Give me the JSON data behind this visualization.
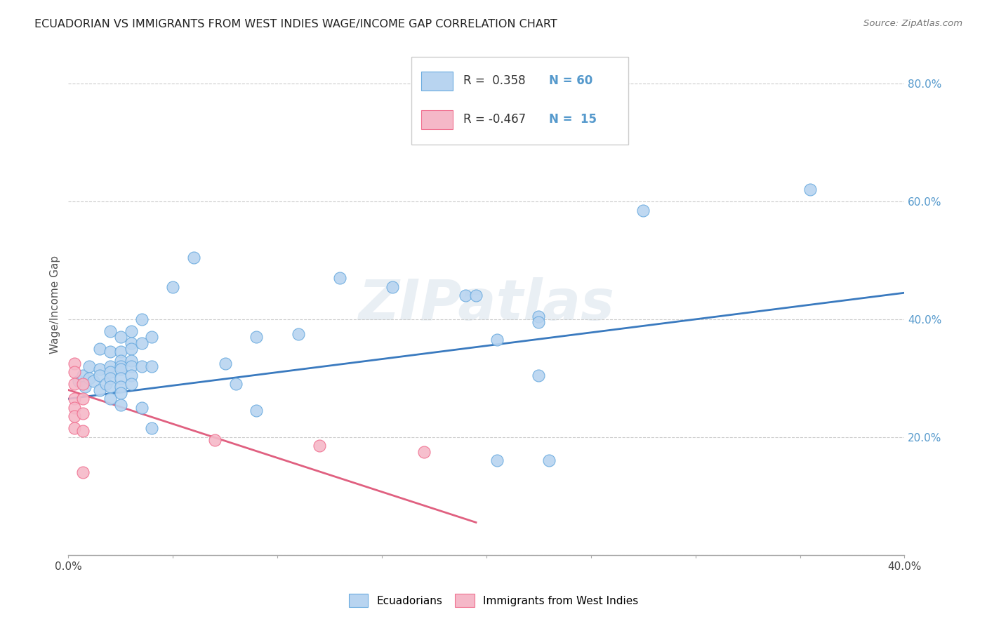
{
  "title": "ECUADORIAN VS IMMIGRANTS FROM WEST INDIES WAGE/INCOME GAP CORRELATION CHART",
  "source": "Source: ZipAtlas.com",
  "ylabel": "Wage/Income Gap",
  "xlim": [
    0.0,
    0.4
  ],
  "ylim": [
    0.0,
    0.85
  ],
  "watermark": "ZIPatlas",
  "blue_R": 0.358,
  "blue_N": 60,
  "pink_R": -0.467,
  "pink_N": 15,
  "blue_color": "#b8d4f0",
  "pink_color": "#f5b8c8",
  "blue_edge_color": "#6aabdf",
  "pink_edge_color": "#f07090",
  "blue_line_color": "#3a7abf",
  "pink_line_color": "#e06080",
  "right_axis_color": "#5599cc",
  "blue_scatter": [
    [
      0.005,
      0.295
    ],
    [
      0.007,
      0.305
    ],
    [
      0.008,
      0.285
    ],
    [
      0.01,
      0.32
    ],
    [
      0.01,
      0.3
    ],
    [
      0.012,
      0.295
    ],
    [
      0.015,
      0.35
    ],
    [
      0.015,
      0.315
    ],
    [
      0.015,
      0.305
    ],
    [
      0.015,
      0.28
    ],
    [
      0.018,
      0.29
    ],
    [
      0.02,
      0.38
    ],
    [
      0.02,
      0.345
    ],
    [
      0.02,
      0.32
    ],
    [
      0.02,
      0.31
    ],
    [
      0.02,
      0.3
    ],
    [
      0.02,
      0.285
    ],
    [
      0.02,
      0.265
    ],
    [
      0.025,
      0.37
    ],
    [
      0.025,
      0.345
    ],
    [
      0.025,
      0.33
    ],
    [
      0.025,
      0.32
    ],
    [
      0.025,
      0.315
    ],
    [
      0.025,
      0.3
    ],
    [
      0.025,
      0.285
    ],
    [
      0.025,
      0.275
    ],
    [
      0.025,
      0.255
    ],
    [
      0.03,
      0.38
    ],
    [
      0.03,
      0.36
    ],
    [
      0.03,
      0.35
    ],
    [
      0.03,
      0.33
    ],
    [
      0.03,
      0.32
    ],
    [
      0.03,
      0.305
    ],
    [
      0.03,
      0.29
    ],
    [
      0.035,
      0.4
    ],
    [
      0.035,
      0.36
    ],
    [
      0.035,
      0.32
    ],
    [
      0.035,
      0.25
    ],
    [
      0.04,
      0.37
    ],
    [
      0.04,
      0.32
    ],
    [
      0.04,
      0.215
    ],
    [
      0.05,
      0.455
    ],
    [
      0.06,
      0.505
    ],
    [
      0.075,
      0.325
    ],
    [
      0.08,
      0.29
    ],
    [
      0.09,
      0.37
    ],
    [
      0.09,
      0.245
    ],
    [
      0.11,
      0.375
    ],
    [
      0.13,
      0.47
    ],
    [
      0.155,
      0.455
    ],
    [
      0.19,
      0.44
    ],
    [
      0.195,
      0.44
    ],
    [
      0.205,
      0.365
    ],
    [
      0.205,
      0.16
    ],
    [
      0.225,
      0.405
    ],
    [
      0.225,
      0.395
    ],
    [
      0.225,
      0.305
    ],
    [
      0.23,
      0.16
    ],
    [
      0.275,
      0.585
    ],
    [
      0.355,
      0.62
    ]
  ],
  "pink_scatter": [
    [
      0.003,
      0.325
    ],
    [
      0.003,
      0.31
    ],
    [
      0.003,
      0.29
    ],
    [
      0.003,
      0.265
    ],
    [
      0.003,
      0.25
    ],
    [
      0.003,
      0.235
    ],
    [
      0.003,
      0.215
    ],
    [
      0.007,
      0.29
    ],
    [
      0.007,
      0.265
    ],
    [
      0.007,
      0.24
    ],
    [
      0.007,
      0.21
    ],
    [
      0.007,
      0.14
    ],
    [
      0.07,
      0.195
    ],
    [
      0.12,
      0.185
    ],
    [
      0.17,
      0.175
    ]
  ],
  "blue_trend_x": [
    0.0,
    0.4
  ],
  "blue_trend_y": [
    0.265,
    0.445
  ],
  "pink_trend_x": [
    0.0,
    0.195
  ],
  "pink_trend_y": [
    0.28,
    0.055
  ]
}
